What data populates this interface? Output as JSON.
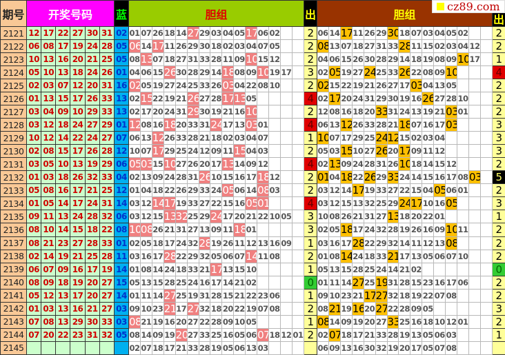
{
  "header": {
    "issue": "期号",
    "red": "开奖号码",
    "blue": "蓝",
    "group1": "胆组",
    "out1": "出",
    "group2": "胆组",
    "out2": "出"
  },
  "watermark": "cz89.com",
  "colors": {
    "highlight1": "#f08080",
    "highlight2": "#ffc000",
    "out_red": "#e00000",
    "out_green": "#33cc33",
    "out_black": "#000000"
  },
  "rows": [
    {
      "issue": "2121",
      "red": [
        "12",
        "17",
        "22",
        "27",
        "30",
        "31"
      ],
      "blue": "02",
      "g1": [
        "01",
        "07",
        "26",
        "18",
        "14",
        "27",
        "29",
        "03",
        "04",
        "05",
        "17",
        "06",
        "02"
      ],
      "h1": [
        5,
        10
      ],
      "o1": "2",
      "g2": [
        "06",
        "14",
        "17",
        "11",
        "26",
        "29",
        "30",
        "18",
        "07",
        "03",
        "04",
        "05",
        "02"
      ],
      "h2": [
        2,
        6
      ],
      "o2": "2"
    },
    {
      "issue": "2122",
      "red": [
        "06",
        "08",
        "17",
        "19",
        "24",
        "28"
      ],
      "blue": "05",
      "g1": [
        "06",
        "14",
        "17",
        "11",
        "26",
        "29",
        "30",
        "18",
        "02",
        "03",
        "04",
        "07",
        "05"
      ],
      "h1": [
        0,
        2
      ],
      "o1": "2",
      "g2": [
        "08",
        "13",
        "07",
        "18",
        "27",
        "31",
        "33",
        "28",
        "11",
        "15",
        "02",
        "03",
        "04",
        "12"
      ],
      "h2": [
        0,
        7
      ],
      "o2": "2"
    },
    {
      "issue": "2123",
      "red": [
        "10",
        "13",
        "16",
        "20",
        "21",
        "25"
      ],
      "blue": "05",
      "g1": [
        "08",
        "13",
        "07",
        "18",
        "27",
        "31",
        "33",
        "28",
        "11",
        "09",
        "10",
        "15",
        "12"
      ],
      "h1": [
        1,
        10
      ],
      "o1": "2",
      "g2": [
        "04",
        "06",
        "15",
        "26",
        "30",
        "28",
        "29",
        "14",
        "18",
        "19",
        "08",
        "09",
        "10",
        "17"
      ],
      "h2": [
        12
      ],
      "o2": "1"
    },
    {
      "issue": "2124",
      "red": [
        "05",
        "10",
        "13",
        "18",
        "24",
        "26"
      ],
      "blue": "01",
      "g1": [
        "04",
        "06",
        "15",
        "26",
        "30",
        "28",
        "29",
        "14",
        "18",
        "08",
        "09",
        "10",
        "19",
        "17"
      ],
      "h1": [
        3,
        8,
        11
      ],
      "o1": "3",
      "g2": [
        "02",
        "05",
        "19",
        "27",
        "24",
        "25",
        "33",
        "26",
        "22",
        "08",
        "09",
        "10"
      ],
      "h2": [
        1,
        4,
        7,
        11
      ],
      "o2": "4"
    },
    {
      "issue": "2125",
      "red": [
        "02",
        "03",
        "07",
        "12",
        "20",
        "31"
      ],
      "blue": "16",
      "g1": [
        "02",
        "05",
        "19",
        "27",
        "24",
        "25",
        "33",
        "26",
        "03",
        "04",
        "22",
        "08",
        "10"
      ],
      "h1": [
        0,
        8
      ],
      "o1": "2",
      "g2": [
        "02",
        "15",
        "22",
        "19",
        "21",
        "26",
        "27",
        "17",
        "03",
        "04",
        "13",
        "05"
      ],
      "h2": [
        0,
        8
      ],
      "o2": "2"
    },
    {
      "issue": "2126",
      "red": [
        "01",
        "13",
        "15",
        "17",
        "26",
        "33"
      ],
      "blue": "13",
      "g1": [
        "02",
        "15",
        "22",
        "19",
        "21",
        "26",
        "27",
        "28",
        "17",
        "13",
        "05"
      ],
      "h1": [
        1,
        5,
        8,
        9
      ],
      "o1": "4",
      "g2": [
        "02",
        "17",
        "20",
        "24",
        "31",
        "29",
        "30",
        "19",
        "16",
        "26",
        "27",
        "28",
        "10"
      ],
      "h2": [
        1,
        9
      ],
      "o2": "2"
    },
    {
      "issue": "2127",
      "red": [
        "03",
        "04",
        "09",
        "10",
        "29",
        "33"
      ],
      "blue": "13",
      "g1": [
        "02",
        "17",
        "20",
        "24",
        "31",
        "29",
        "30",
        "19",
        "21",
        "16",
        "10"
      ],
      "h1": [
        5,
        10
      ],
      "o1": "2",
      "g2": [
        "12",
        "08",
        "16",
        "18",
        "20",
        "33",
        "31",
        "24",
        "13",
        "19",
        "21",
        "03",
        "01"
      ],
      "h2": [
        5,
        11
      ],
      "o2": "2"
    },
    {
      "issue": "2128",
      "red": [
        "03",
        "12",
        "18",
        "24",
        "27",
        "29"
      ],
      "blue": "01",
      "g1": [
        "12",
        "08",
        "16",
        "18",
        "20",
        "33",
        "31",
        "24",
        "17",
        "13",
        "03",
        "01"
      ],
      "h1": [
        0,
        3,
        7,
        10
      ],
      "o1": "4",
      "g2": [
        "06",
        "13",
        "12",
        "26",
        "33",
        "28",
        "21",
        "18",
        "07",
        "16",
        "17",
        "03"
      ],
      "h2": [
        2,
        7,
        11
      ],
      "o2": "3"
    },
    {
      "issue": "2129",
      "red": [
        "10",
        "12",
        "14",
        "22",
        "24",
        "27"
      ],
      "blue": "07",
      "g1": [
        "06",
        "13",
        "12",
        "26",
        "33",
        "28",
        "21",
        "18",
        "02",
        "03",
        "04",
        "07"
      ],
      "h1": [
        2
      ],
      "o1": "1",
      "g2": [
        "10",
        "07",
        "17",
        "29",
        "25",
        "24",
        "12",
        "15",
        "02",
        "03",
        "04"
      ],
      "h2": [
        0,
        5,
        6
      ],
      "o2": "3"
    },
    {
      "issue": "2130",
      "red": [
        "02",
        "08",
        "15",
        "17",
        "26",
        "28"
      ],
      "blue": "12",
      "g1": [
        "10",
        "07",
        "17",
        "29",
        "25",
        "24",
        "12",
        "09",
        "11",
        "15",
        "04",
        "03"
      ],
      "h1": [
        2,
        9
      ],
      "o1": "2",
      "g2": [
        "05",
        "03",
        "15",
        "10",
        "27",
        "26",
        "20",
        "17",
        "09",
        "11",
        "12"
      ],
      "h2": [
        2,
        5,
        7
      ],
      "o2": "3"
    },
    {
      "issue": "2131",
      "red": [
        "03",
        "05",
        "10",
        "13",
        "19",
        "29"
      ],
      "blue": "06",
      "g1": [
        "05",
        "03",
        "15",
        "10",
        "27",
        "26",
        "20",
        "17",
        "13",
        "14",
        "09",
        "12"
      ],
      "h1": [
        0,
        1,
        3,
        8
      ],
      "o1": "4",
      "g2": [
        "02",
        "13",
        "09",
        "24",
        "28",
        "31",
        "26",
        "10",
        "18",
        "14",
        "15",
        "12"
      ],
      "h2": [
        1,
        7
      ],
      "o2": "2"
    },
    {
      "issue": "2132",
      "red": [
        "01",
        "03",
        "18",
        "26",
        "32",
        "33"
      ],
      "blue": "04",
      "g1": [
        "02",
        "13",
        "09",
        "24",
        "28",
        "31",
        "26",
        "10",
        "15",
        "16",
        "17",
        "18",
        "12"
      ],
      "h1": [
        6,
        11
      ],
      "o1": "2",
      "g2": [
        "01",
        "04",
        "18",
        "22",
        "26",
        "29",
        "33",
        "24",
        "14",
        "15",
        "16",
        "17",
        "08",
        "03"
      ],
      "h2": [
        0,
        2,
        4,
        6,
        13
      ],
      "o2": "5"
    },
    {
      "issue": "2133",
      "red": [
        "05",
        "08",
        "16",
        "17",
        "21",
        "25"
      ],
      "blue": "12",
      "g1": [
        "01",
        "04",
        "18",
        "22",
        "26",
        "29",
        "33",
        "24",
        "05",
        "06",
        "14",
        "08",
        "03"
      ],
      "h1": [
        8,
        11
      ],
      "o1": "2",
      "g2": [
        "03",
        "12",
        "14",
        "17",
        "19",
        "33",
        "27",
        "22",
        "15",
        "04",
        "05",
        "06",
        "01"
      ],
      "h2": [
        3,
        10
      ],
      "o2": "2"
    },
    {
      "issue": "2134",
      "red": [
        "01",
        "05",
        "14",
        "17",
        "24",
        "31"
      ],
      "blue": "14",
      "g1": [
        "03",
        "12",
        "14",
        "17",
        "19",
        "33",
        "27",
        "22",
        "15",
        "16",
        "05",
        "01"
      ],
      "h1": [
        2,
        3,
        10,
        11
      ],
      "o1": "4",
      "g2": [
        "03",
        "12",
        "15",
        "13",
        "32",
        "25",
        "29",
        "24",
        "17",
        "10",
        "16",
        "05"
      ],
      "h2": [
        7,
        8,
        11
      ],
      "o2": "3"
    },
    {
      "issue": "2135",
      "red": [
        "09",
        "11",
        "13",
        "24",
        "28",
        "32"
      ],
      "blue": "06",
      "g1": [
        "03",
        "12",
        "15",
        "13",
        "32",
        "25",
        "29",
        "24",
        "17",
        "20",
        "21",
        "22",
        "10",
        "05"
      ],
      "h1": [
        3,
        4,
        7
      ],
      "o1": "3",
      "g2": [
        "10",
        "08",
        "26",
        "21",
        "31",
        "27",
        "13",
        "18",
        "20",
        "22",
        "01"
      ],
      "h2": [
        6
      ],
      "o2": "1"
    },
    {
      "issue": "2136",
      "red": [
        "08",
        "10",
        "14",
        "15",
        "18",
        "22"
      ],
      "blue": "08",
      "g1": [
        "10",
        "08",
        "26",
        "21",
        "31",
        "27",
        "13",
        "09",
        "11",
        "18",
        "01"
      ],
      "h1": [
        0,
        1,
        9
      ],
      "o1": "3",
      "g2": [
        "02",
        "05",
        "18",
        "17",
        "24",
        "32",
        "28",
        "19",
        "26",
        "16",
        "09",
        "10",
        "11"
      ],
      "h2": [
        2,
        11
      ],
      "o2": "2"
    },
    {
      "issue": "2137",
      "red": [
        "08",
        "21",
        "23",
        "27",
        "28",
        "33"
      ],
      "blue": "01",
      "g1": [
        "02",
        "05",
        "18",
        "17",
        "24",
        "32",
        "28",
        "19",
        "26",
        "11",
        "12",
        "13",
        "16",
        "09"
      ],
      "h1": [
        6
      ],
      "o1": "1",
      "g2": [
        "03",
        "16",
        "17",
        "28",
        "22",
        "29",
        "32",
        "14",
        "11",
        "12",
        "13",
        "08"
      ],
      "h2": [
        3,
        11
      ],
      "o2": "2"
    },
    {
      "issue": "2138",
      "red": [
        "02",
        "14",
        "19",
        "21",
        "25",
        "28"
      ],
      "blue": "11",
      "g1": [
        "03",
        "16",
        "17",
        "28",
        "22",
        "29",
        "32",
        "05",
        "06",
        "07",
        "14",
        "11",
        "08"
      ],
      "h1": [
        3,
        10
      ],
      "o1": "2",
      "g2": [
        "01",
        "08",
        "14",
        "24",
        "18",
        "33",
        "21",
        "17",
        "13",
        "05",
        "06",
        "07",
        "10"
      ],
      "h2": [
        2,
        6
      ],
      "o2": "2"
    },
    {
      "issue": "2139",
      "red": [
        "06",
        "07",
        "09",
        "16",
        "17",
        "19"
      ],
      "blue": "14",
      "g1": [
        "01",
        "08",
        "14",
        "24",
        "18",
        "33",
        "21",
        "17",
        "13",
        "15",
        "10"
      ],
      "h1": [
        7
      ],
      "o1": "1",
      "g2": [
        "05",
        "13",
        "15",
        "28",
        "25",
        "24",
        "14",
        "21",
        "02"
      ],
      "h2": [],
      "o2": "0"
    },
    {
      "issue": "2140",
      "red": [
        "08",
        "09",
        "18",
        "19",
        "20",
        "27"
      ],
      "blue": "15",
      "g1": [
        "05",
        "13",
        "15",
        "28",
        "25",
        "24",
        "16",
        "17",
        "14",
        "21",
        "02"
      ],
      "h1": [],
      "o1": "0",
      "g2": [
        "01",
        "11",
        "14",
        "27",
        "25",
        "19",
        "31",
        "28",
        "15",
        "23",
        "16",
        "17",
        "06"
      ],
      "h2": [
        3,
        5
      ],
      "o2": "2"
    },
    {
      "issue": "2141",
      "red": [
        "05",
        "12",
        "13",
        "17",
        "20",
        "27"
      ],
      "blue": "14",
      "g1": [
        "01",
        "11",
        "14",
        "27",
        "25",
        "19",
        "31",
        "28",
        "15",
        "21",
        "22",
        "23",
        "06"
      ],
      "h1": [
        3
      ],
      "o1": "1",
      "g2": [
        "09",
        "10",
        "23",
        "21",
        "17",
        "27",
        "32",
        "18",
        "19",
        "22",
        "07",
        "08"
      ],
      "h2": [
        4,
        5
      ],
      "o2": "2"
    },
    {
      "issue": "2142",
      "red": [
        "01",
        "03",
        "13",
        "16",
        "21",
        "27"
      ],
      "blue": "03",
      "g1": [
        "09",
        "10",
        "23",
        "21",
        "17",
        "27",
        "32",
        "18",
        "20",
        "22",
        "19",
        "07",
        "08"
      ],
      "h1": [
        3,
        5
      ],
      "o1": "2",
      "g2": [
        "08",
        "21",
        "19",
        "16",
        "20",
        "27",
        "22",
        "28",
        "09",
        "05"
      ],
      "h2": [
        1,
        3,
        5
      ],
      "o2": "3"
    },
    {
      "issue": "2143",
      "red": [
        "07",
        "08",
        "13",
        "29",
        "30",
        "33"
      ],
      "blue": "03",
      "g1": [
        "08",
        "21",
        "19",
        "16",
        "20",
        "27",
        "22",
        "28",
        "09",
        "10",
        "05"
      ],
      "h1": [
        0
      ],
      "o1": "1",
      "g2": [
        "08",
        "14",
        "09",
        "19",
        "20",
        "27",
        "33",
        "25",
        "16",
        "18",
        "10",
        "12",
        "01"
      ],
      "h2": [
        0,
        6
      ],
      "o2": "2"
    },
    {
      "issue": "2144",
      "red": [
        "07",
        "20",
        "22",
        "23",
        "31",
        "32"
      ],
      "blue": "05",
      "g1": [
        "08",
        "14",
        "09",
        "19",
        "20",
        "27",
        "33",
        "25",
        "16",
        "05",
        "06",
        "07",
        "18",
        "12",
        "01"
      ],
      "h1": [
        4,
        11
      ],
      "o1": "2",
      "g2": [
        "02",
        "07",
        "18",
        "17",
        "21",
        "33",
        "28",
        "19",
        "13",
        "05",
        "06",
        "03"
      ],
      "h2": [
        1
      ],
      "o2": "1"
    },
    {
      "issue": "2145",
      "red": [
        "",
        "",
        "",
        "",
        "",
        ""
      ],
      "blue": "",
      "g1": [
        "02",
        "07",
        "18",
        "17",
        "21",
        "33",
        "28",
        "19",
        "05",
        "06",
        "13",
        "03"
      ],
      "h1": [],
      "o1": "",
      "g2": [
        "06",
        "09",
        "13",
        "16",
        "30",
        "32",
        "19",
        "20",
        "17",
        "05",
        "07",
        "08"
      ],
      "h2": [],
      "o2": ""
    }
  ]
}
